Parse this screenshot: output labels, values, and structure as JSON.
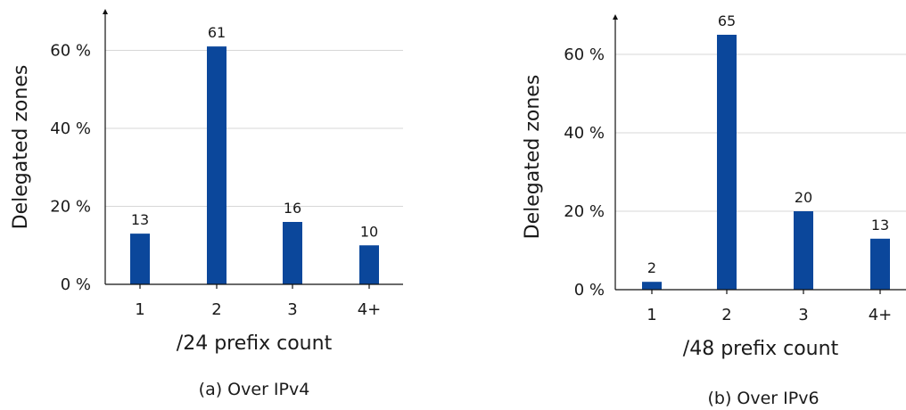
{
  "colors": {
    "bar": "#0b479b"
  },
  "chart_data": [
    {
      "type": "bar",
      "categories": [
        "1",
        "2",
        "3",
        "4+"
      ],
      "values": [
        13,
        61,
        16,
        10
      ],
      "data_labels": [
        "13",
        "61",
        "16",
        "10"
      ],
      "xlabel": "/24 prefix count",
      "ylabel": "Delegated zones",
      "yticks": [
        0,
        20,
        40,
        60
      ],
      "ytick_labels": [
        "0 %",
        "20 %",
        "40 %",
        "60 %"
      ],
      "ylim": [
        0,
        70
      ],
      "grid": true,
      "caption": "(a) Over IPv4"
    },
    {
      "type": "bar",
      "categories": [
        "1",
        "2",
        "3",
        "4+"
      ],
      "values": [
        2,
        65,
        20,
        13
      ],
      "data_labels": [
        "2",
        "65",
        "20",
        "13"
      ],
      "xlabel": "/48 prefix count",
      "ylabel": "Delegated zones",
      "yticks": [
        0,
        20,
        40,
        60
      ],
      "ytick_labels": [
        "0 %",
        "20 %",
        "40 %",
        "60 %"
      ],
      "ylim": [
        0,
        70
      ],
      "grid": true,
      "caption": "(b) Over IPv6"
    }
  ]
}
